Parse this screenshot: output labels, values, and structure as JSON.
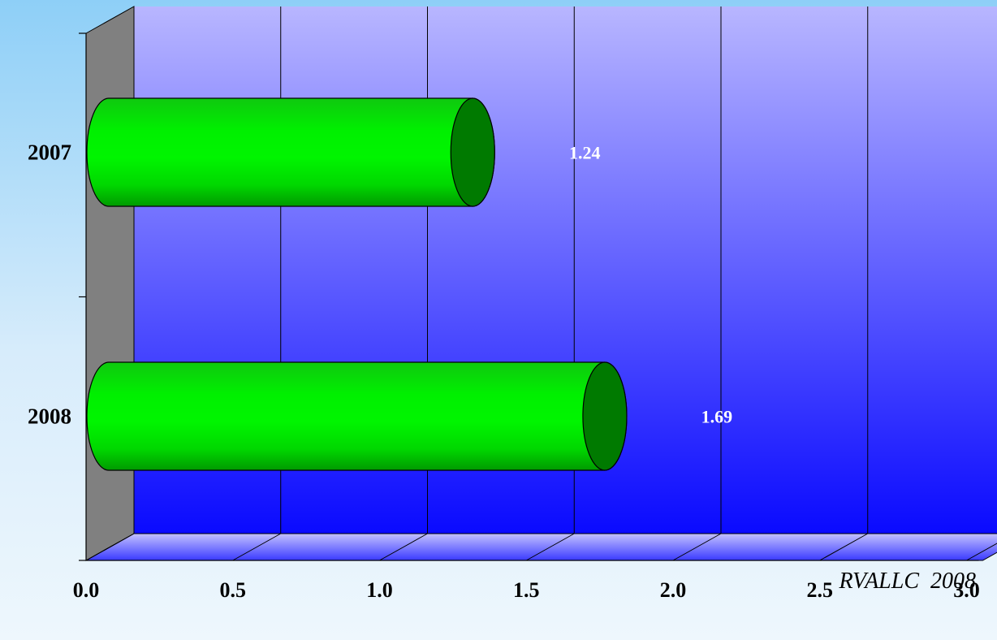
{
  "chart_data": {
    "type": "bar",
    "orientation": "horizontal",
    "style": "3d-cylinder",
    "categories": [
      "2007",
      "2008"
    ],
    "values": [
      1.24,
      1.69
    ],
    "value_labels": [
      "1.24",
      "1.69"
    ],
    "xlim": [
      0,
      3
    ],
    "x_ticks": [
      "0.0",
      "0.5",
      "1.0",
      "1.5",
      "2.0",
      "2.5",
      "3.0"
    ],
    "x_tick_values": [
      0,
      0.5,
      1.0,
      1.5,
      2.0,
      2.5,
      3.0
    ],
    "grid": "vertical",
    "legend": "none",
    "title": "",
    "xlabel": "",
    "ylabel": ""
  },
  "credit": "RVALLC  2008",
  "colors": {
    "bar_body": "#00ee00",
    "bar_cap": "#007a00",
    "wall_top": "#b8b6ff",
    "wall_bottom": "#0a0aff",
    "side_wall": "#808080",
    "data_label": "#ffffff"
  }
}
